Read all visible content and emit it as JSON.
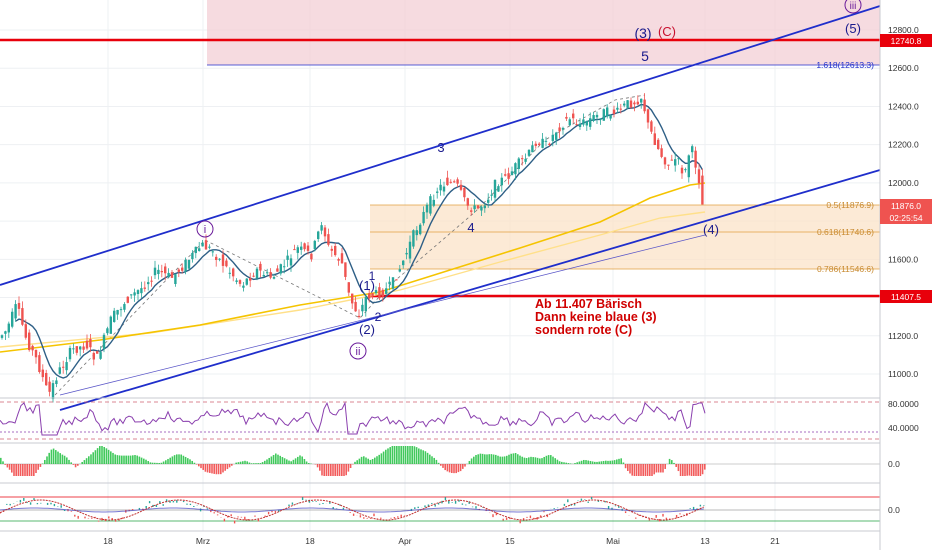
{
  "colors": {
    "background": "#ffffff",
    "grid": "#eef0f3",
    "candle_up": "#26a69a",
    "candle_down": "#ef5350",
    "ema_fast": "#2e5f86",
    "ma_slow": "#f5c400",
    "ma_slower": "#ffe08a",
    "channel": "#1f2ecb",
    "support_red": "#e8000b",
    "target_zone": "#f3cfd6",
    "fib_zone": "#fbe3c8",
    "fib_line": "#e0a040",
    "wave_blue": "#1a1a8c",
    "wave_purple": "#6a1b9a",
    "rsi": "#8a3fae",
    "osc_green": "#20c040",
    "osc_red": "#f04040"
  },
  "price_axis": {
    "min": 10800,
    "max": 12900,
    "ticks": [
      "12800.0",
      "12600.0",
      "12400.0",
      "12200.0",
      "12000.0",
      "11600.0",
      "11400.0",
      "11200.0",
      "11000.0"
    ]
  },
  "price_badges": {
    "upper_level": "12740.8",
    "last_price": "11876.0",
    "countdown": "02:25:54",
    "support_level": "11407.5"
  },
  "time_axis": {
    "labels": [
      "18",
      "Mrz",
      "18",
      "Apr",
      "15",
      "Mai",
      "13",
      "21"
    ]
  },
  "fib_labels": {
    "ext_1618": "1.618(12613.3)",
    "r_05": "0.5(11876.9)",
    "r_0618": "0.618(11740.6)",
    "r_0786": "0.786(11546.6)"
  },
  "annotation": {
    "line1": "Ab 11.407 Bärisch",
    "line2": "Dann keine blaue (3)",
    "line3": "sondern rote (C)"
  },
  "wave_labels": {
    "w_i": "i",
    "w_ii": "ii",
    "w_iii": "iii",
    "w_1": "(1)",
    "w_2": "(2)",
    "w_1b": "1",
    "w_2b": "2",
    "w_3": "3",
    "w_4": "4",
    "w_5": "5",
    "w_3p": "(3)",
    "w_c": "(C)",
    "w_4p": "(4)",
    "w_5p": "(5)"
  },
  "rsi_axis": {
    "ticks": [
      "80.0000",
      "40.0000"
    ]
  },
  "osc1_axis": {
    "ticks": [
      "0.0"
    ]
  },
  "osc2_axis": {
    "ticks": [
      "0.0"
    ]
  },
  "chart_data": {
    "type": "line",
    "title": "",
    "xlabel": "",
    "ylabel": "",
    "x_range": [
      "2019-02-04",
      "2019-05-13"
    ],
    "ylim": [
      10800,
      12900
    ],
    "grid": true,
    "price_path": {
      "x": [
        "2019-02-04",
        "2019-02-08",
        "2019-02-13",
        "2019-02-16",
        "2019-02-20",
        "2019-02-25",
        "2019-03-01",
        "2019-03-05",
        "2019-03-09",
        "2019-03-13",
        "2019-03-16",
        "2019-03-19",
        "2019-03-22",
        "2019-03-25",
        "2019-03-29",
        "2019-04-03",
        "2019-04-09",
        "2019-04-16",
        "2019-04-22",
        "2019-04-26",
        "2019-05-02",
        "2019-05-04",
        "2019-05-07",
        "2019-05-10",
        "2019-05-13"
      ],
      "y": [
        11100,
        11450,
        10850,
        11200,
        11300,
        11500,
        11680,
        11520,
        11480,
        11700,
        11580,
        11450,
        11310,
        11420,
        11450,
        11900,
        12000,
        11860,
        12100,
        12250,
        12380,
        12300,
        12050,
        12200,
        11876
      ]
    },
    "support_level": 11407.5,
    "upper_level": 12740.8,
    "target_zone": [
      12613.3,
      12900
    ],
    "fib_levels": [
      {
        "ratio": 0.5,
        "value": 11876.9
      },
      {
        "ratio": 0.618,
        "value": 11740.6
      },
      {
        "ratio": 0.786,
        "value": 11546.6
      },
      {
        "ratio": 1.618,
        "value": 12613.3
      }
    ],
    "channel": {
      "upper": [
        {
          "x": "2019-02-04",
          "y": 11450
        },
        {
          "x": "2019-05-21",
          "y": 12890
        }
      ],
      "lower": [
        {
          "x": "2019-02-04",
          "y": 10750
        },
        {
          "x": "2019-05-21",
          "y": 12050
        }
      ]
    }
  }
}
